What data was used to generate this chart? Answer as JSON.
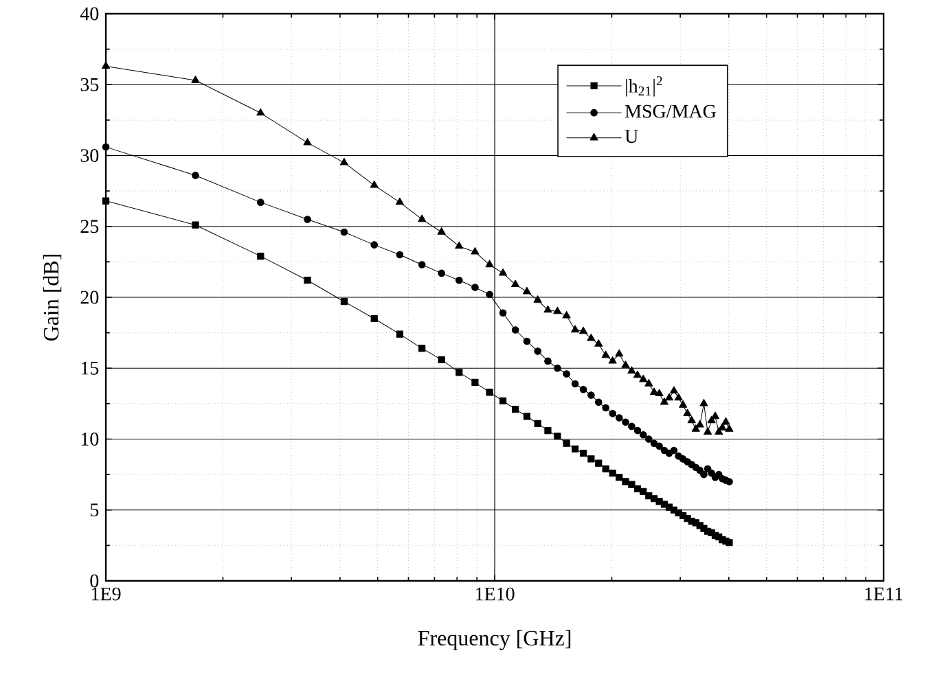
{
  "chart_data": {
    "type": "line",
    "xlabel": "Frequency [GHz]",
    "ylabel": "Gain [dB]",
    "log": "x",
    "xlim": [
      1000000000,
      100000000000
    ],
    "xticks": [
      {
        "value": 1000000000,
        "label": "1E9"
      },
      {
        "value": 10000000000,
        "label": "1E10"
      },
      {
        "value": 100000000000,
        "label": "1E11"
      }
    ],
    "ylim": [
      0,
      40
    ],
    "yticks": [
      0,
      5,
      10,
      15,
      20,
      25,
      30,
      35,
      40
    ],
    "grid": true,
    "legend": "top right",
    "line_style": "solid",
    "x": [
      1000000000,
      1700000000,
      2500000000,
      3300000000,
      4100000000,
      4900000000,
      5700000000,
      6500000000,
      7300000000,
      8100000000,
      8900000000,
      9700000000,
      10500000000,
      11300000000,
      12100000000,
      12900000000,
      13700000000,
      14500000000,
      15300000000,
      16100000000,
      16900000000,
      17700000000,
      18500000000,
      19300000000,
      20100000000,
      20900000000,
      21700000000,
      22500000000,
      23300000000,
      24100000000,
      24900000000,
      25700000000,
      26500000000,
      27300000000,
      28100000000,
      28900000000,
      29700000000,
      30500000000,
      31300000000,
      32100000000,
      32900000000,
      33700000000,
      34500000000,
      35300000000,
      36100000000,
      36900000000,
      37700000000,
      38500000000,
      39300000000,
      40100000000
    ],
    "series": [
      {
        "name": "|h$_{21}$|$^{2}$",
        "color": "#000000",
        "marker": "square",
        "values": [
          26.8,
          25.1,
          22.9,
          21.2,
          19.7,
          18.5,
          17.4,
          16.4,
          15.6,
          14.7,
          14.0,
          13.3,
          12.7,
          12.1,
          11.6,
          11.1,
          10.6,
          10.2,
          9.7,
          9.3,
          9.0,
          8.6,
          8.3,
          7.9,
          7.6,
          7.3,
          7.0,
          6.8,
          6.5,
          6.3,
          6.0,
          5.8,
          5.6,
          5.4,
          5.2,
          5.0,
          4.8,
          4.6,
          4.4,
          4.2,
          4.1,
          3.9,
          3.7,
          3.5,
          3.4,
          3.2,
          3.1,
          2.9,
          2.8,
          2.7
        ]
      },
      {
        "name": "MSG/MAG",
        "color": "#000000",
        "marker": "circle",
        "values": [
          30.6,
          28.6,
          26.7,
          25.5,
          24.6,
          23.7,
          23.0,
          22.3,
          21.7,
          21.2,
          20.7,
          20.2,
          18.9,
          17.7,
          16.9,
          16.2,
          15.5,
          15.0,
          14.6,
          13.9,
          13.5,
          13.1,
          12.6,
          12.2,
          11.8,
          11.5,
          11.2,
          10.9,
          10.6,
          10.3,
          10.0,
          9.7,
          9.5,
          9.2,
          9.0,
          9.2,
          8.8,
          8.6,
          8.4,
          8.2,
          8.0,
          7.8,
          7.5,
          7.9,
          7.6,
          7.3,
          7.5,
          7.2,
          7.1,
          7.0
        ]
      },
      {
        "name": "U",
        "color": "#000000",
        "marker": "triangle",
        "values": [
          36.3,
          35.3,
          33.0,
          30.9,
          29.5,
          27.9,
          26.7,
          25.5,
          24.6,
          23.6,
          23.2,
          22.3,
          21.7,
          20.9,
          20.4,
          19.8,
          19.1,
          19.0,
          18.7,
          17.7,
          17.6,
          17.1,
          16.7,
          15.9,
          15.5,
          16.0,
          15.2,
          14.8,
          14.5,
          14.2,
          13.9,
          13.3,
          13.2,
          12.6,
          12.9,
          13.4,
          12.9,
          12.4,
          11.8,
          11.3,
          10.7,
          11.0,
          12.5,
          10.5,
          11.3,
          11.6,
          10.5,
          10.8,
          11.2,
          10.7
        ]
      }
    ]
  }
}
